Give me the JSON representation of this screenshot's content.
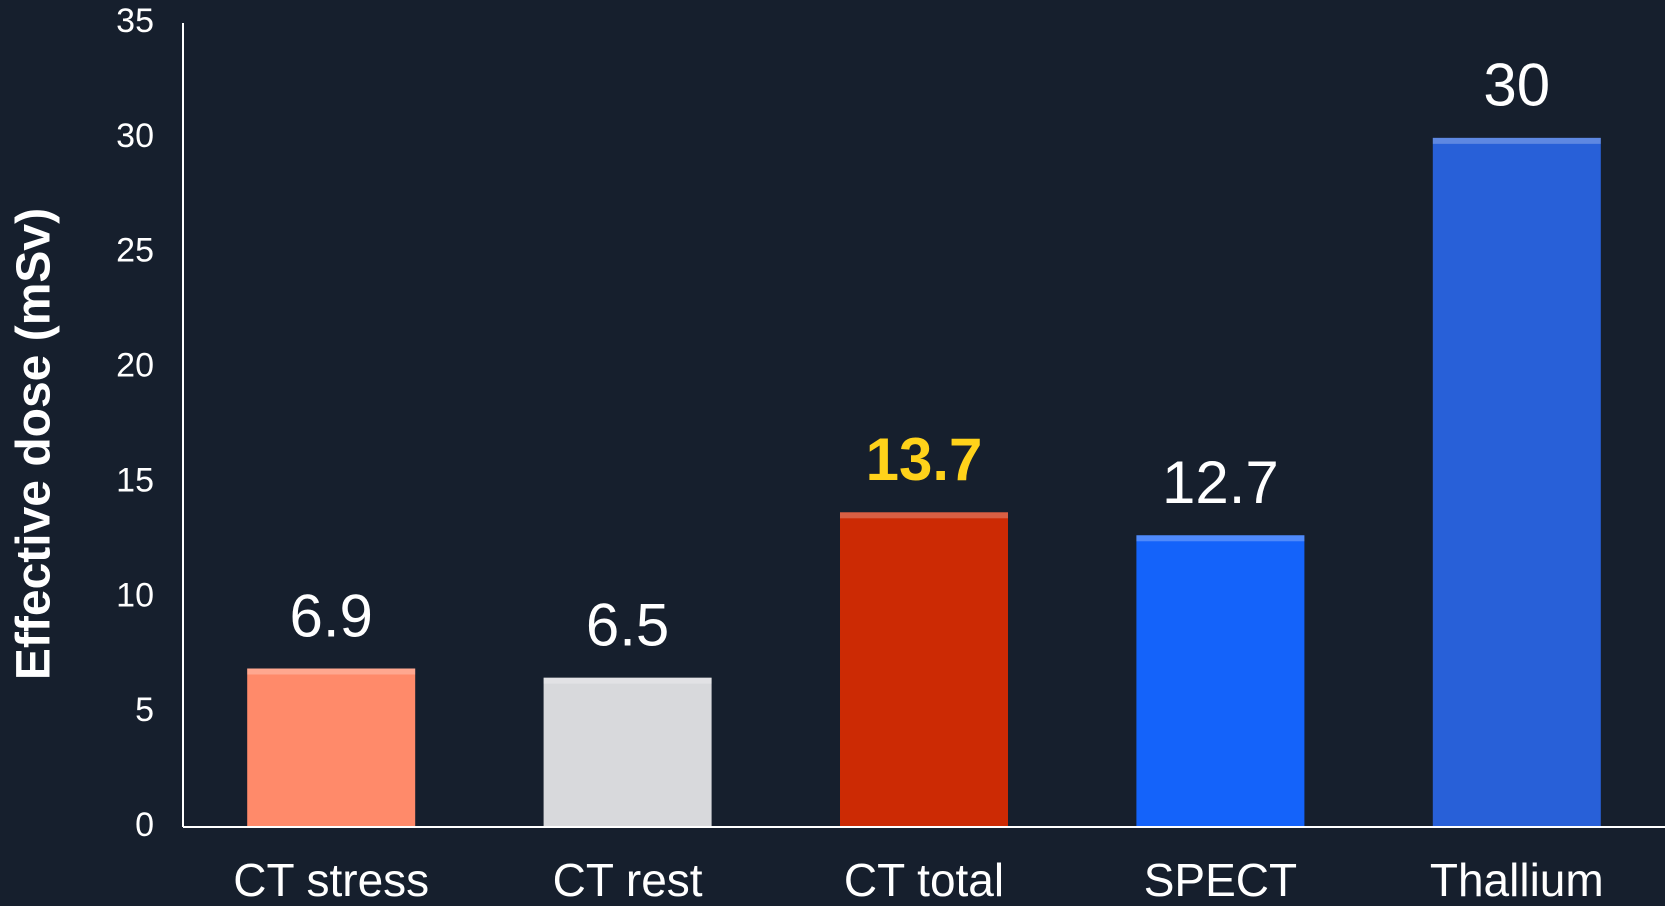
{
  "chart_data": {
    "type": "bar",
    "y_axis_label": "Effective dose (mSv)",
    "categories": [
      "CT stress",
      "CT rest",
      "CT total",
      "SPECT",
      "Thallium"
    ],
    "values": [
      6.9,
      6.5,
      13.7,
      12.7,
      30
    ],
    "colors": [
      "#ff8a6a",
      "#d8d9dc",
      "#cc2a04",
      "#1463fa",
      "#2860d8"
    ],
    "value_label_colors": [
      "#ffffff",
      "#ffffff",
      "#ffd21a",
      "#ffffff",
      "#ffffff"
    ],
    "value_label_weights": [
      "normal",
      "normal",
      "bold",
      "normal",
      "normal"
    ],
    "ylim": [
      0,
      35
    ],
    "yticks": [
      0,
      5,
      10,
      15,
      20,
      25,
      30,
      35
    ],
    "grid": false
  }
}
